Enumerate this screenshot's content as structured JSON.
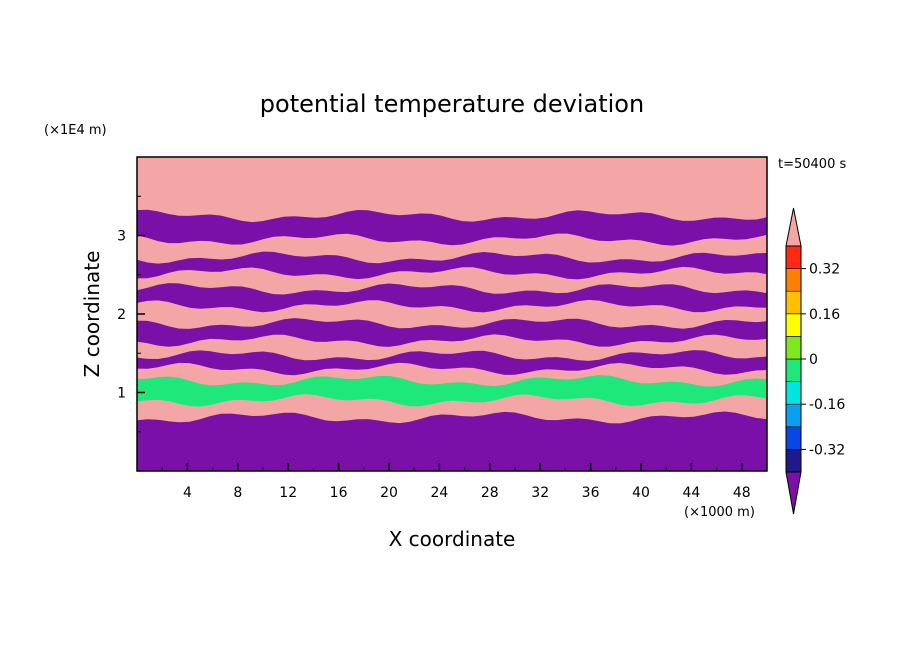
{
  "chart_data": {
    "type": "heatmap",
    "title": "potential temperature deviation",
    "xlabel": "X coordinate",
    "ylabel": "Z coordinate",
    "x_unit": "(×1000 m)",
    "y_unit": "(×1E4 m)",
    "time_label": "t=50400 s",
    "xlim": [
      0,
      50
    ],
    "ylim": [
      0,
      4
    ],
    "x_ticks": [
      4,
      8,
      12,
      16,
      20,
      24,
      28,
      32,
      36,
      40,
      44,
      48
    ],
    "y_ticks": [
      1,
      2,
      3
    ],
    "colorbar": {
      "levels": [
        -0.4,
        -0.32,
        -0.24,
        -0.16,
        -0.08,
        0,
        0.08,
        0.16,
        0.24,
        0.32,
        0.4
      ],
      "tick_labels": [
        "0.32",
        "0.16",
        "0",
        "-0.16",
        "-0.32"
      ],
      "tick_values": [
        0.32,
        0.16,
        0,
        -0.16,
        -0.32
      ],
      "colors": [
        "#7a10a8",
        "#1e1a8c",
        "#0a46e6",
        "#09a0f0",
        "#00e5e0",
        "#1fe87a",
        "#7ee81e",
        "#ffff00",
        "#ffc000",
        "#ff8000",
        "#ff2a10",
        "#f4a6a6"
      ],
      "extend": "both"
    },
    "bands": [
      {
        "z": 3.74,
        "value": 0.45
      },
      {
        "z": 3.25,
        "value": -0.45
      },
      {
        "z": 2.95,
        "value": 0.45
      },
      {
        "z": 2.72,
        "value": -0.45
      },
      {
        "z": 2.52,
        "value": 0.45
      },
      {
        "z": 2.32,
        "value": -0.45
      },
      {
        "z": 2.1,
        "value": 0.45
      },
      {
        "z": 1.88,
        "value": -0.45
      },
      {
        "z": 1.66,
        "value": 0.45
      },
      {
        "z": 1.47,
        "value": -0.45
      },
      {
        "z": 1.3,
        "value": 0.45
      },
      {
        "z": 1.15,
        "value": -0.02
      },
      {
        "z": 0.9,
        "value": 0.45
      },
      {
        "z": 0.68,
        "value": -0.45
      }
    ]
  }
}
